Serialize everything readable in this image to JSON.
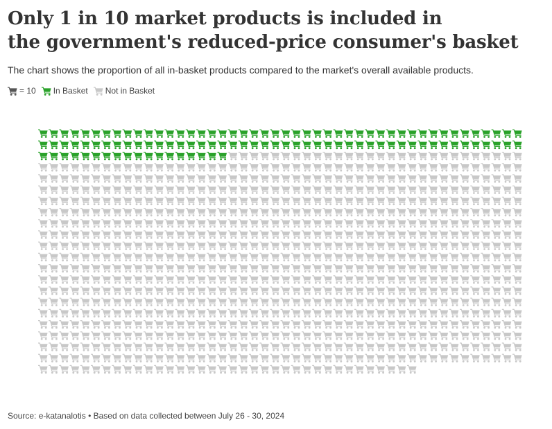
{
  "title_line1": "Only 1 in 10 market products is included in",
  "title_line2": "the government's reduced-price consumer's basket",
  "subtitle": "The chart shows the proportion of all in-basket products compared to the market's overall available products.",
  "legend": {
    "unit_label": "= 10",
    "in_label": "In Basket",
    "out_label": "Not in Basket"
  },
  "source": "Source: e-katanalotis • Based on data collected between July 26 - 30, 2024",
  "colors": {
    "in_basket": "#2aa22a",
    "not_in_basket": "#c8c8c8",
    "unit": "#555555",
    "text": "#333333"
  },
  "icons": {
    "unit": "cart-icon",
    "in": "cart-icon",
    "out": "cart-icon"
  },
  "chart_data": {
    "type": "waffle",
    "unit_value": 10,
    "categories": [
      "In Basket",
      "Not in Basket"
    ],
    "values": [
      1099,
      8921
    ],
    "icons_per_row": 46,
    "in_basket_icons": 110,
    "total_icons": 1002
  }
}
